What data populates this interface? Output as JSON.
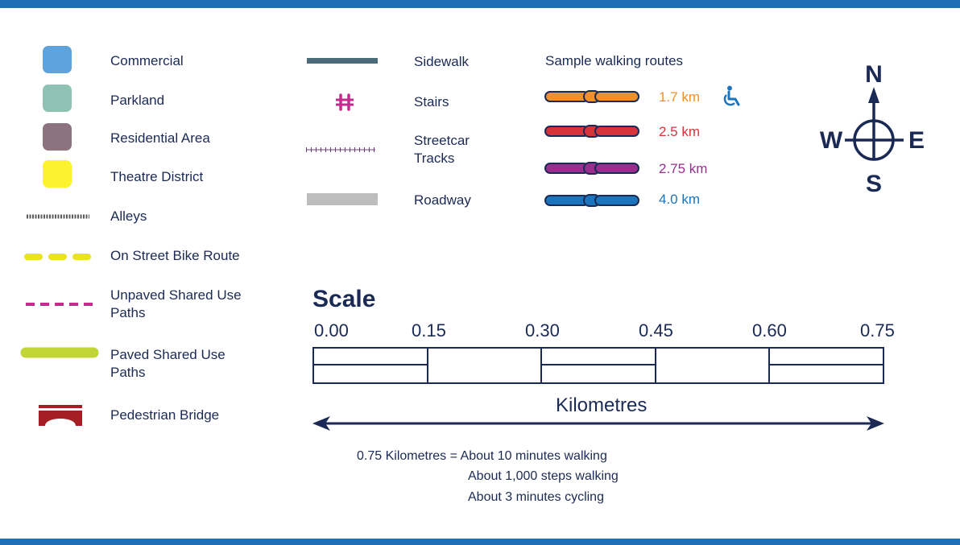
{
  "colors": {
    "band": "#1f6fb6",
    "text": "#1b2a55",
    "commercial": "#5fa3dc",
    "parkland": "#8fc2b3",
    "residential": "#8d737f",
    "theatre": "#fdf22f",
    "bridge": "#a41f24"
  },
  "legend_left": [
    {
      "key": "commercial",
      "label": "Commercial",
      "symbol": "swatch-commercial"
    },
    {
      "key": "parkland",
      "label": "Parkland",
      "symbol": "swatch-parkland"
    },
    {
      "key": "residential",
      "label": "Residential Area",
      "symbol": "swatch-residential"
    },
    {
      "key": "theatre",
      "label": "Theatre District",
      "symbol": "swatch-theatre"
    },
    {
      "key": "alleys",
      "label": "Alleys",
      "symbol": "alley-line"
    },
    {
      "key": "bike",
      "label": "On Street Bike Route",
      "symbol": "yellow-dash-line"
    },
    {
      "key": "unpaved",
      "label": "Unpaved Shared Use Paths",
      "symbol": "pink-dash-line"
    },
    {
      "key": "paved",
      "label": "Paved Shared Use Paths",
      "symbol": "green-solid-line"
    },
    {
      "key": "bridge",
      "label": "Pedestrian Bridge",
      "symbol": "bridge-icon"
    }
  ],
  "legend_mid": [
    {
      "key": "sidewalk",
      "label": "Sidewalk",
      "symbol": "sidewalk-line"
    },
    {
      "key": "stairs",
      "label": "Stairs",
      "symbol": "stairs-icon"
    },
    {
      "key": "streetcar",
      "label": "Streetcar Tracks",
      "symbol": "track-line"
    },
    {
      "key": "roadway",
      "label": "Roadway",
      "symbol": "roadway-bar"
    }
  ],
  "routes": {
    "title": "Sample walking routes",
    "accessible_icon": "wheelchair-icon",
    "items": [
      {
        "distance": "1.7 km",
        "color": "#f0902a"
      },
      {
        "distance": "2.5 km",
        "color": "#d8333a"
      },
      {
        "distance": "2.75 km",
        "color": "#9a2e8f"
      },
      {
        "distance": "4.0 km",
        "color": "#1c75bc"
      }
    ]
  },
  "compass": {
    "north": "N",
    "south": "S",
    "east": "E",
    "west": "W"
  },
  "scale": {
    "title": "Scale",
    "ticks": [
      "0.00",
      "0.15",
      "0.30",
      "0.45",
      "0.60",
      "0.75"
    ],
    "unit": "Kilometres",
    "notes": [
      "0.75 Kilometres = About 10 minutes walking",
      "About 1,000 steps walking",
      "About 3 minutes cycling"
    ]
  }
}
